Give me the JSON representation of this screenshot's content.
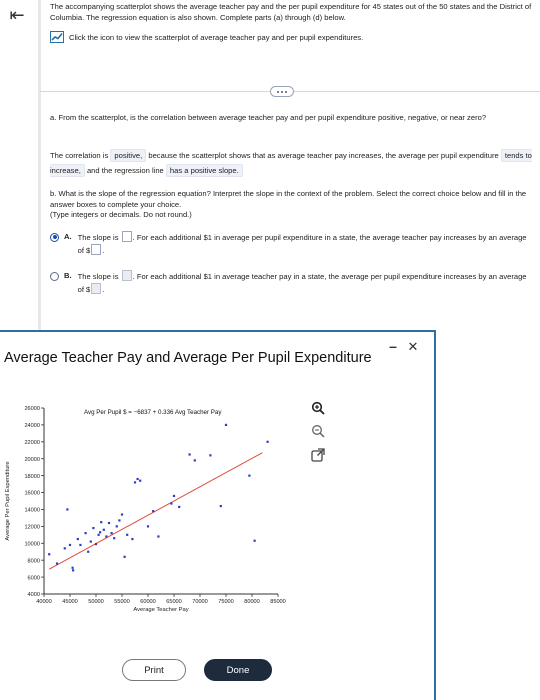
{
  "header": {
    "intro": "The accompanying scatterplot shows the average teacher pay and the per pupil expenditure for 45 states out of the 50 states and the District of Columbia. The regression equation is also shown. Complete parts (a) through (d) below.",
    "scatter_link": "Click the icon to view the scatterplot of average teacher pay and per pupil expenditures."
  },
  "part_a": {
    "question": "a. From the scatterplot, is the correlation between average teacher pay and per pupil expenditure positive, negative, or near zero?",
    "answer_prefix": "The correlation is",
    "answer_1": "positive,",
    "answer_middle": "because the scatterplot shows that as average teacher pay increases, the average per pupil expenditure",
    "answer_2": "tends to increase,",
    "answer_middle_2": "and the regression line",
    "answer_3": "has a positive slope."
  },
  "part_b": {
    "question": "b. What is the slope of the regression equation? Interpret the slope in the context of the problem. Select the correct choice below and fill in the answer boxes to complete your choice.",
    "hint": "(Type integers or decimals. Do not round.)",
    "option_a": {
      "letter": "A.",
      "text_1": "The slope is",
      "text_2": ". For each additional $1 in average per pupil expenditure in a state, the average teacher pay increases by an average of $",
      "selected": true
    },
    "option_b": {
      "letter": "B.",
      "text_1": "The slope is",
      "text_2": ". For each additional $1 in average teacher pay in a state, the average per pupil expenditure increases by an average of $",
      "selected": false
    }
  },
  "popup": {
    "title": "Average Teacher Pay and Average Per Pupil Expenditure",
    "print_label": "Print",
    "done_label": "Done",
    "tools": [
      "zoom-in-icon",
      "zoom-out-icon",
      "open-external-icon"
    ]
  },
  "chart_data": {
    "type": "scatter",
    "xlabel": "Average Teacher Pay",
    "ylabel": "Average Per Pupil Expenditure",
    "equation": "Avg Per Pupil $ = −6837 + 0.336 Avg Teacher Pay",
    "xlim": [
      40000,
      85000
    ],
    "ylim": [
      4000,
      26000
    ],
    "x_ticks": [
      40000,
      45000,
      50000,
      55000,
      60000,
      65000,
      70000,
      75000,
      80000,
      85000
    ],
    "y_ticks": [
      4000,
      6000,
      8000,
      10000,
      12000,
      14000,
      16000,
      18000,
      20000,
      22000,
      24000,
      26000
    ],
    "regression": {
      "intercept": -6837,
      "slope": 0.336
    },
    "point_color": "#2a3cc8",
    "line_color": "#e04a3c",
    "points": [
      [
        41000,
        8700
      ],
      [
        42500,
        7600
      ],
      [
        44000,
        9400
      ],
      [
        45000,
        9800
      ],
      [
        45500,
        7100
      ],
      [
        45600,
        6800
      ],
      [
        46500,
        10500
      ],
      [
        47000,
        9800
      ],
      [
        48000,
        11200
      ],
      [
        48500,
        9000
      ],
      [
        49000,
        10200
      ],
      [
        49500,
        11800
      ],
      [
        50000,
        9900
      ],
      [
        50500,
        11000
      ],
      [
        51000,
        12500
      ],
      [
        51500,
        11600
      ],
      [
        52000,
        10800
      ],
      [
        52500,
        12400
      ],
      [
        53000,
        11200
      ],
      [
        54000,
        12000
      ],
      [
        54500,
        12700
      ],
      [
        55000,
        13400
      ],
      [
        55500,
        8400
      ],
      [
        56000,
        11000
      ],
      [
        57000,
        10500
      ],
      [
        57500,
        17200
      ],
      [
        58000,
        17600
      ],
      [
        58500,
        17400
      ],
      [
        60000,
        12000
      ],
      [
        61000,
        13800
      ],
      [
        62000,
        10800
      ],
      [
        64500,
        14700
      ],
      [
        65000,
        15600
      ],
      [
        66000,
        14300
      ],
      [
        68000,
        20500
      ],
      [
        69000,
        19800
      ],
      [
        72000,
        20400
      ],
      [
        74000,
        14400
      ],
      [
        75000,
        24000
      ],
      [
        79500,
        18000
      ],
      [
        80500,
        10300
      ],
      [
        83000,
        22000
      ],
      [
        44500,
        14000
      ],
      [
        50800,
        11300
      ],
      [
        53500,
        10600
      ]
    ]
  }
}
